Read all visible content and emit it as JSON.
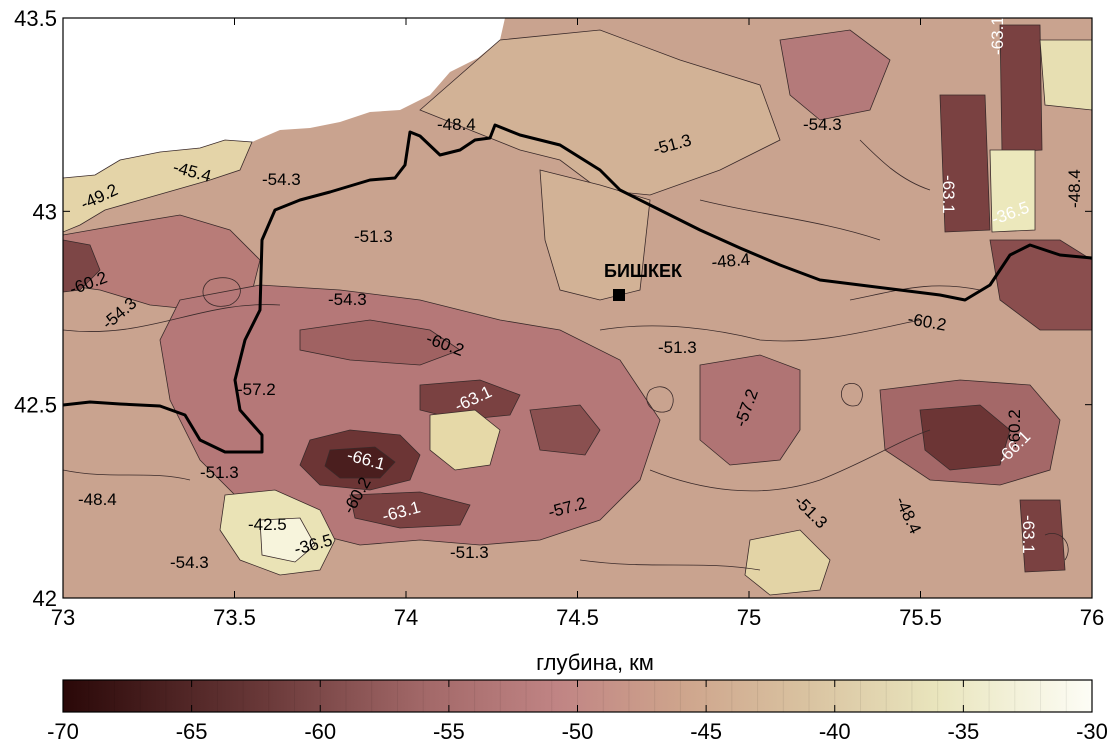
{
  "map": {
    "x_axis": {
      "ticks": [
        "73",
        "73.5",
        "74",
        "74.5",
        "75",
        "75.5",
        "76"
      ]
    },
    "y_axis": {
      "ticks": [
        "42",
        "42.5",
        "43",
        "43.5"
      ]
    },
    "city": {
      "name": "БИШКЕК"
    },
    "contour_labels": [
      "-63.1",
      "-48.4",
      "-54.3",
      "-51.3",
      "-45.4",
      "-49.2",
      "-54.3",
      "-63.1",
      "-36.5",
      "-48.4",
      "-60.2",
      "-51.3",
      "-48.4",
      "-54.3",
      "-54.3",
      "-60.2",
      "-60.2",
      "-51.3",
      "-57.2",
      "-63.1",
      "-57.2",
      "-60.2",
      "-66.1",
      "-66.1",
      "-60.2",
      "-63.1",
      "-57.2",
      "-51.3",
      "-51.3",
      "-48.4",
      "-42.5",
      "-36.5",
      "-54.3",
      "-51.3",
      "-48.4",
      "-63.1"
    ]
  },
  "colorbar": {
    "label": "глубина, км",
    "min": -70,
    "max": -30,
    "ticks": [
      "-70",
      "-65",
      "-60",
      "-55",
      "-50",
      "-45",
      "-40",
      "-35",
      "-30"
    ]
  },
  "colors": {
    "scale_deep": "#2a0808",
    "scale_mid": "#c08484",
    "scale_shallow": "#fdfdf6"
  }
}
